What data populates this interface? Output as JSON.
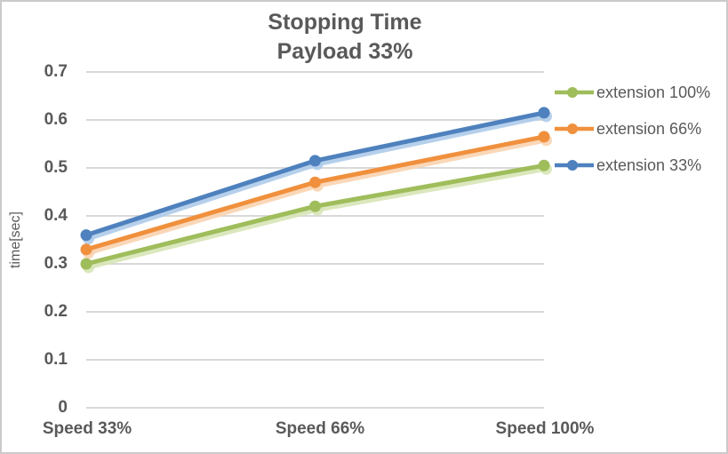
{
  "chart": {
    "title_lines": [
      "Stopping Time",
      "Payload 33%"
    ],
    "y_axis_title": "time[sec]",
    "y_ticks": [
      "0.7",
      "0.6",
      "0.5",
      "0.4",
      "0.3",
      "0.2",
      "0.1",
      "0"
    ]
  },
  "chart_data": {
    "type": "line",
    "title": "Stopping Time",
    "subtitle": "Payload 33%",
    "categories": [
      "Speed 33%",
      "Speed 66%",
      "Speed 100%"
    ],
    "series": [
      {
        "name": "extension 100%",
        "color": "#9FBD5B",
        "shadow_color": "#D7E4B6",
        "values": [
          0.3,
          0.42,
          0.505
        ]
      },
      {
        "name": "extension 66%",
        "color": "#F0903D",
        "shadow_color": "#F9D3B0",
        "values": [
          0.33,
          0.47,
          0.565
        ]
      },
      {
        "name": "extension 33%",
        "color": "#4E81BD",
        "shadow_color": "#AECBEA",
        "values": [
          0.36,
          0.515,
          0.615
        ]
      }
    ],
    "xlabel": "",
    "ylabel": "time[sec]",
    "ylim": [
      0,
      0.7
    ],
    "ytick_step": 0.1,
    "grid": true,
    "grid_color": "#D9D9D9",
    "text_color": "#595959",
    "legend_position": "right"
  }
}
